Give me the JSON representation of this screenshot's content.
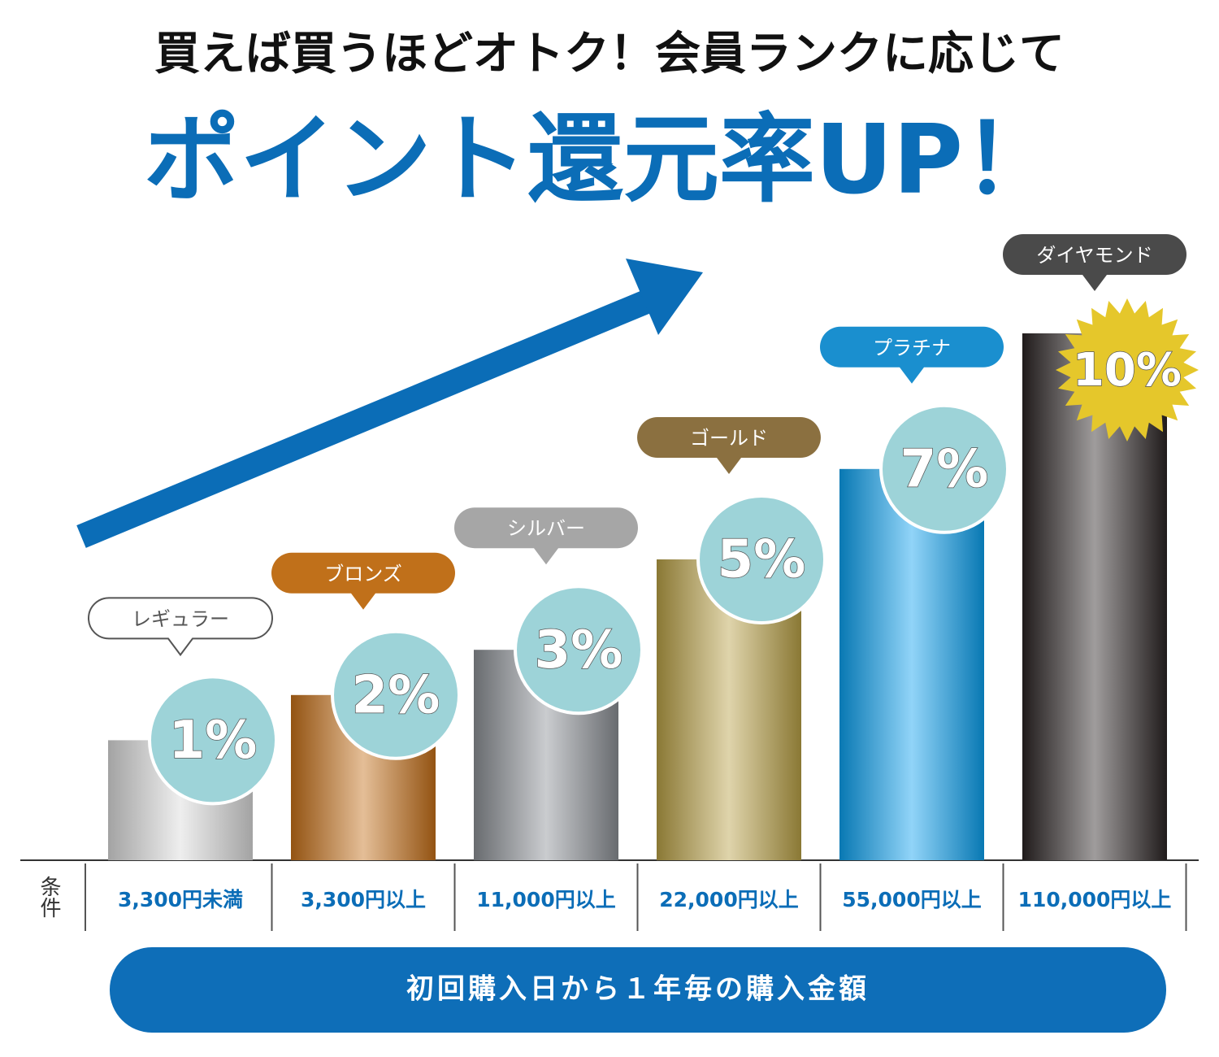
{
  "chart_data": {
    "type": "bar",
    "title": "買えば買うほどオトク！会員ランクに応じて",
    "subtitle": "ポイント還元率UP！",
    "categories": [
      "レギュラー",
      "ブロンズ",
      "シルバー",
      "ゴールド",
      "プラチナ",
      "ダイヤモンド"
    ],
    "values": [
      1,
      2,
      3,
      5,
      7,
      10
    ],
    "value_labels": [
      "1%",
      "2%",
      "3%",
      "5%",
      "7%",
      "10%"
    ],
    "colors": [
      "#d9d9d9",
      "#c46f18",
      "#8a8e94",
      "#b8a045",
      "#0aa0ef",
      "#2a2424"
    ],
    "tag_colors": [
      "#ffffff",
      "#c0701a",
      "#a6a6a6",
      "#8b7040",
      "#1a8fcf",
      "#4a4a4a"
    ],
    "condition_label": "条件",
    "conditions": [
      "3,300円未満",
      "3,300円以上",
      "11,000円以上",
      "22,000円以上",
      "55,000円以上",
      "110,000円以上"
    ],
    "footer": "初回購入日から１年毎の購入金額"
  }
}
